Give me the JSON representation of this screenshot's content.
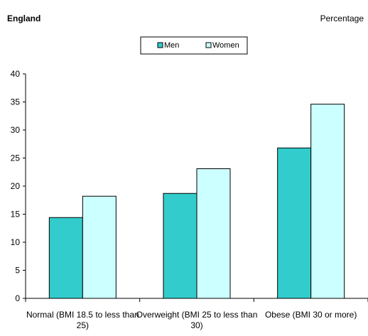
{
  "chart_data": {
    "type": "bar",
    "title": "England",
    "ylabel": "Percentage",
    "categories": [
      [
        "Normal (BMI 18.5 to less than",
        "25)"
      ],
      [
        "Overweight (BMI 25 to less than",
        "30)"
      ],
      [
        "Obese (BMI 30 or more)"
      ]
    ],
    "series": [
      {
        "name": "Men",
        "values": [
          14.4,
          18.7,
          26.8
        ],
        "color": "#33cccc"
      },
      {
        "name": "Women",
        "values": [
          18.2,
          23.1,
          34.6
        ],
        "color": "#ccffff"
      }
    ],
    "ylim": [
      0,
      40
    ],
    "yticks": [
      "0",
      "5",
      "10",
      "15",
      "20",
      "25",
      "30",
      "35",
      "40"
    ],
    "grid": false,
    "legend_position": "top-center"
  }
}
